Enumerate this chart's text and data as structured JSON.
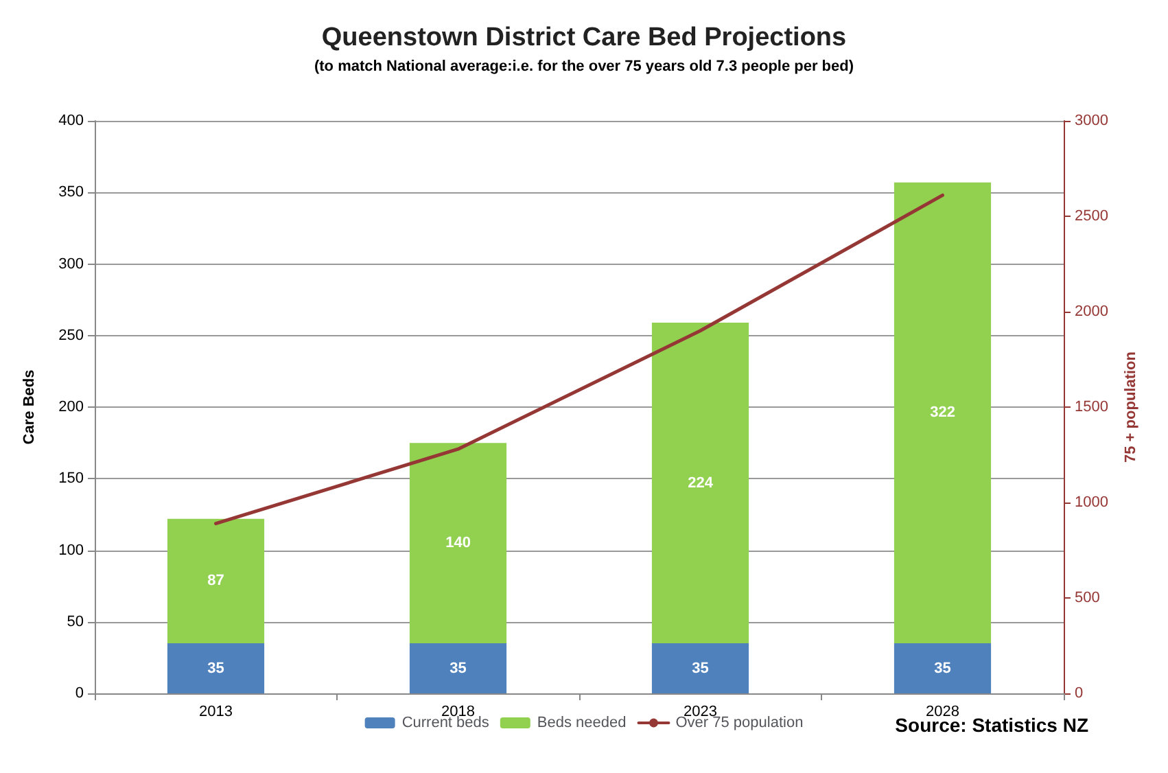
{
  "chart_data": {
    "type": "bar",
    "title": "Queenstown District Care Bed Projections",
    "subtitle": "(to match National average:i.e. for the over 75 years old 7.3 people per bed)",
    "ylabel": "Care Beds",
    "y2label": "75 + population",
    "categories": [
      "2013",
      "2018",
      "2023",
      "2028"
    ],
    "stacked": true,
    "series": [
      {
        "name": "Current beds",
        "color": "#4f81bd",
        "values": [
          35,
          35,
          35,
          35
        ],
        "value_labels": [
          "35",
          "35",
          "35",
          "35"
        ]
      },
      {
        "name": "Beds needed",
        "color": "#92d050",
        "values": [
          87,
          140,
          224,
          322
        ],
        "value_labels": [
          "87",
          "140",
          "224",
          "322"
        ]
      },
      {
        "name": "Over 75 population",
        "type": "line",
        "axis": "y2",
        "color": "#953735",
        "values": [
          890,
          1280,
          1900,
          2610
        ]
      }
    ],
    "ylim": [
      0,
      400
    ],
    "yticks": [
      0,
      50,
      100,
      150,
      200,
      250,
      300,
      350,
      400
    ],
    "y2lim": [
      0,
      3000
    ],
    "y2ticks": [
      0,
      500,
      1000,
      1500,
      2000,
      2500,
      3000
    ],
    "grid": "y",
    "legend": "bottom",
    "marker": "none",
    "line_style": "solid",
    "annotations": [
      "Source: Statistics NZ"
    ]
  }
}
